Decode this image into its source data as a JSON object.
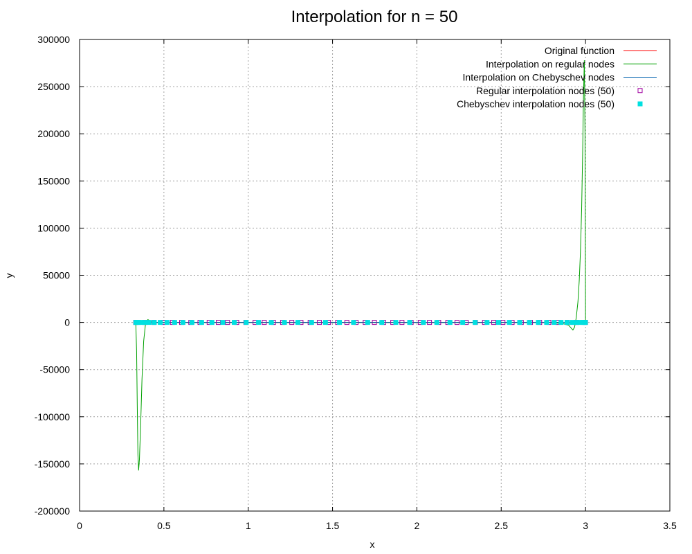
{
  "chart_data": {
    "type": "line",
    "title": "Interpolation for n = 50",
    "xlabel": "x",
    "ylabel": "y",
    "xlim": [
      0,
      3.5
    ],
    "ylim": [
      -200000,
      300000
    ],
    "xticks": [
      0,
      0.5,
      1,
      1.5,
      2,
      2.5,
      3,
      3.5
    ],
    "xtick_labels": [
      "0",
      "0.5",
      "1",
      "1.5",
      "2",
      "2.5",
      "3",
      "3.5"
    ],
    "yticks": [
      -200000,
      -150000,
      -100000,
      -50000,
      0,
      50000,
      100000,
      150000,
      200000,
      250000,
      300000
    ],
    "ytick_labels": [
      "-200000",
      "-150000",
      "-100000",
      "-50000",
      "0",
      "50000",
      "100000",
      "150000",
      "200000",
      "250000",
      "300000"
    ],
    "grid": true,
    "legend_position": "top-right",
    "colors": {
      "original": "#ff0000",
      "regular": "#00a000",
      "chebyshev": "#0060ad",
      "regular_nodes": "#a000a0",
      "chebyshev_nodes": "#00e0e0"
    },
    "series": [
      {
        "name": "Original function",
        "style": "line",
        "x": [
          0.333,
          3.0
        ],
        "y": [
          0,
          0
        ]
      },
      {
        "name": "Interpolation on regular nodes",
        "style": "line",
        "x": [
          0.333,
          0.338,
          0.342,
          0.346,
          0.35,
          0.355,
          0.362,
          0.37,
          0.38,
          0.392,
          0.405,
          0.42,
          0.45,
          0.5,
          1.0,
          2.0,
          2.8,
          2.87,
          2.9,
          2.915,
          2.925,
          2.935,
          2.945,
          2.955,
          2.963,
          2.97,
          2.977,
          2.983,
          2.988,
          2.993,
          2.997,
          3.0
        ],
        "y": [
          0,
          -30000,
          -90000,
          -140000,
          -157000,
          -145000,
          -110000,
          -60000,
          -20000,
          0,
          3000,
          1500,
          0,
          0,
          0,
          0,
          0,
          -1500,
          -3000,
          -6000,
          -8000,
          -5000,
          5000,
          22000,
          45000,
          75000,
          120000,
          180000,
          240000,
          278000,
          200000,
          0
        ]
      },
      {
        "name": "Interpolation on Chebyschev nodes",
        "style": "line",
        "x": [
          0.333,
          3.0
        ],
        "y": [
          0,
          0
        ]
      },
      {
        "name": "Regular interpolation nodes (50)",
        "style": "points",
        "marker": "open-square",
        "count": 50,
        "x_start": 0.333,
        "x_end": 3.0,
        "y": 0
      },
      {
        "name": "Chebyschev interpolation nodes (50)",
        "style": "points",
        "marker": "filled-square",
        "count": 50,
        "x_start": 0.333,
        "x_end": 3.0,
        "y": 0
      }
    ]
  }
}
